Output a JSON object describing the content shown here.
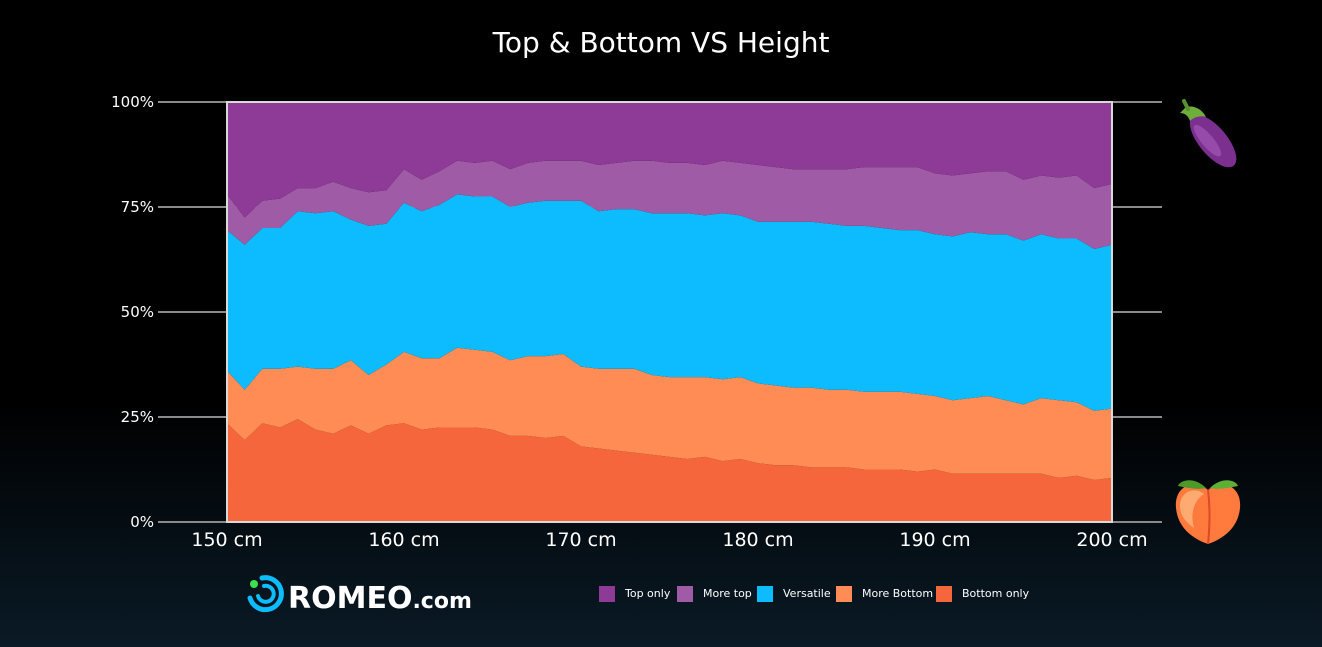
{
  "chart_data": {
    "type": "area",
    "stacked": true,
    "normalized": true,
    "title": "Top & Bottom VS Height",
    "xlabel": "",
    "ylabel": "",
    "x_tick_labels": [
      "150 cm",
      "160 cm",
      "170 cm",
      "180 cm",
      "190 cm",
      "200 cm"
    ],
    "x_ticks": [
      150,
      160,
      170,
      180,
      190,
      200
    ],
    "y_tick_labels": [
      "0%",
      "25%",
      "50%",
      "75%",
      "100%"
    ],
    "y_ticks": [
      0,
      25,
      50,
      75,
      100
    ],
    "xlim": [
      150,
      200
    ],
    "ylim": [
      0,
      100
    ],
    "legend_position": "bottom-center",
    "x": [
      150,
      151,
      152,
      153,
      154,
      155,
      156,
      157,
      158,
      159,
      160,
      161,
      162,
      163,
      164,
      165,
      166,
      167,
      168,
      169,
      170,
      171,
      172,
      173,
      174,
      175,
      176,
      177,
      178,
      179,
      180,
      181,
      182,
      183,
      184,
      185,
      186,
      187,
      188,
      189,
      190,
      191,
      192,
      193,
      194,
      195,
      196,
      197,
      198,
      199,
      200
    ],
    "series": [
      {
        "name": "Bottom only",
        "color": "#f5663c",
        "values": [
          23.5,
          19.5,
          23.5,
          22.5,
          24.5,
          22,
          21,
          23,
          21,
          23,
          23.5,
          22,
          22.5,
          22.5,
          22.5,
          22,
          20.5,
          20.5,
          20,
          20.5,
          18,
          17.5,
          17,
          16.5,
          16,
          15.5,
          15,
          15.5,
          14.5,
          15,
          14,
          13.5,
          13.5,
          13,
          13,
          13,
          12.5,
          12.5,
          12.5,
          12,
          12.5,
          11.5,
          11.5,
          11.5,
          11.5,
          11.5,
          11.5,
          10.5,
          11,
          10,
          10.5
        ]
      },
      {
        "name": "More Bottom",
        "color": "#ff8c54",
        "values": [
          12.5,
          12,
          13,
          14,
          12.5,
          14.5,
          15.5,
          15.5,
          14,
          14.5,
          17,
          17,
          16.5,
          19,
          18.5,
          18.5,
          18,
          19,
          19.5,
          19.5,
          19,
          19,
          19.5,
          20,
          19,
          19,
          19.5,
          19,
          19.5,
          19.5,
          19,
          19,
          18.5,
          19,
          18.5,
          18.5,
          18.5,
          18.5,
          18.5,
          18.5,
          17.5,
          17.5,
          18,
          18.5,
          17.5,
          16.5,
          18,
          18.5,
          17.5,
          16.5,
          16.5
        ]
      },
      {
        "name": "Versatile",
        "color": "#0cbcff",
        "values": [
          33.5,
          34.5,
          33.5,
          33.5,
          37,
          37,
          37.5,
          33.5,
          35.5,
          33.5,
          35.5,
          35,
          36.5,
          36.5,
          36.5,
          37,
          36.5,
          36.5,
          37,
          36.5,
          39.5,
          37.5,
          38,
          38,
          38.5,
          39,
          39,
          38.5,
          39.5,
          38.5,
          38.5,
          39,
          39.5,
          39.5,
          39.5,
          39,
          39.5,
          39,
          38.5,
          39,
          38.5,
          39,
          39.5,
          38.5,
          39.5,
          39,
          39,
          38.5,
          39,
          38.5,
          39
        ]
      },
      {
        "name": "More top",
        "color": "#a05ba6",
        "values": [
          8.5,
          6.5,
          6.5,
          7,
          5.5,
          6,
          7,
          7.5,
          8,
          8,
          8,
          7.5,
          8,
          8,
          8,
          8.5,
          9,
          9.5,
          9.5,
          9.5,
          9.5,
          11,
          11,
          11.5,
          12.5,
          12,
          12,
          12,
          12.5,
          12.5,
          13.5,
          13,
          12.5,
          12.5,
          13,
          13.5,
          14,
          14.5,
          15,
          15,
          14.5,
          14.5,
          14,
          15,
          15,
          14.5,
          14,
          14.5,
          15,
          14.5,
          14.5
        ]
      },
      {
        "name": "Top only",
        "color": "#8e3a97",
        "values": [
          22,
          27.5,
          23.5,
          23,
          20.5,
          20.5,
          19,
          20.5,
          21.5,
          21,
          16,
          18.5,
          16.5,
          14,
          14.5,
          14,
          16,
          14.5,
          14,
          14,
          14,
          15,
          14.5,
          14,
          14,
          14.5,
          14.5,
          15,
          14,
          14.5,
          15,
          15.5,
          16,
          16,
          16,
          16,
          15.5,
          15.5,
          15.5,
          15.5,
          17,
          17.5,
          17,
          16.5,
          16.5,
          18.5,
          17.5,
          18,
          17.5,
          20.5,
          19.5
        ]
      }
    ]
  },
  "legend": {
    "items": [
      {
        "label": "Top only",
        "color": "#8e3a97"
      },
      {
        "label": "More top",
        "color": "#a05ba6"
      },
      {
        "label": "Versatile",
        "color": "#0cbcff"
      },
      {
        "label": "More Bottom",
        "color": "#ff8c54"
      },
      {
        "label": "Bottom only",
        "color": "#f5663c"
      }
    ]
  },
  "brand": {
    "name": "ROMEO",
    "suffix": ".com",
    "accent": "#0cbcff",
    "dot_color": "#3ee04f"
  },
  "decorations": {
    "top_icon": "eggplant-icon",
    "bottom_icon": "peach-icon"
  }
}
